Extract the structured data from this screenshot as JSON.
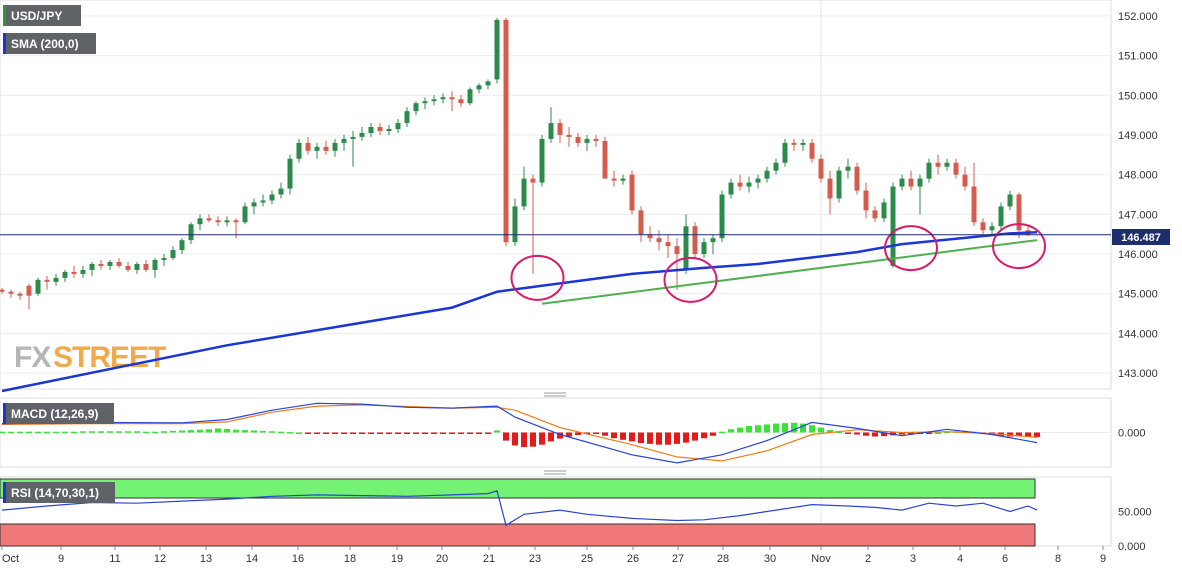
{
  "chart_data": [
    {
      "type": "candlestick",
      "symbol": "USD/JPY",
      "indicator_label": "SMA (200,0)",
      "current_price": "146.487",
      "ylim": [
        142.6,
        152.4
      ],
      "y_ticks": [
        "143.000",
        "144.000",
        "145.000",
        "146.000",
        "147.000",
        "148.000",
        "149.000",
        "150.000",
        "151.000",
        "152.000"
      ],
      "x_ticks": [
        "Oct",
        "9",
        "11",
        "12",
        "13",
        "14",
        "16",
        "18",
        "19",
        "20",
        "21",
        "23",
        "25",
        "26",
        "27",
        "28",
        "30",
        "Nov",
        "2",
        "3",
        "4",
        "6",
        "8",
        "9"
      ],
      "candles_ohlc": [
        [
          145.1,
          145.15,
          145.0,
          145.05
        ],
        [
          145.05,
          145.1,
          144.9,
          145.0
        ],
        [
          145.0,
          145.05,
          144.85,
          144.95
        ],
        [
          145.2,
          145.25,
          144.6,
          144.95
        ],
        [
          145.0,
          145.4,
          144.95,
          145.35
        ],
        [
          145.35,
          145.45,
          145.1,
          145.3
        ],
        [
          145.3,
          145.5,
          145.2,
          145.4
        ],
        [
          145.4,
          145.6,
          145.3,
          145.55
        ],
        [
          145.55,
          145.7,
          145.4,
          145.5
        ],
        [
          145.5,
          145.7,
          145.4,
          145.6
        ],
        [
          145.6,
          145.8,
          145.45,
          145.75
        ],
        [
          145.75,
          145.85,
          145.6,
          145.7
        ],
        [
          145.7,
          145.85,
          145.6,
          145.8
        ],
        [
          145.8,
          145.9,
          145.65,
          145.7
        ],
        [
          145.7,
          145.8,
          145.55,
          145.6
        ],
        [
          145.6,
          145.8,
          145.5,
          145.75
        ],
        [
          145.75,
          145.85,
          145.55,
          145.6
        ],
        [
          145.6,
          145.9,
          145.4,
          145.85
        ],
        [
          145.85,
          146.0,
          145.7,
          145.9
        ],
        [
          145.9,
          146.2,
          145.85,
          146.1
        ],
        [
          146.1,
          146.4,
          146.0,
          146.35
        ],
        [
          146.35,
          146.8,
          146.25,
          146.75
        ],
        [
          146.75,
          147.0,
          146.6,
          146.9
        ],
        [
          146.9,
          147.0,
          146.8,
          146.85
        ],
        [
          146.85,
          146.95,
          146.7,
          146.8
        ],
        [
          146.8,
          146.95,
          146.7,
          146.85
        ],
        [
          146.85,
          146.9,
          146.4,
          146.8
        ],
        [
          146.8,
          147.3,
          146.75,
          147.2
        ],
        [
          147.2,
          147.4,
          147.0,
          147.3
        ],
        [
          147.3,
          147.5,
          147.2,
          147.35
        ],
        [
          147.35,
          147.6,
          147.25,
          147.5
        ],
        [
          147.5,
          147.8,
          147.4,
          147.65
        ],
        [
          147.65,
          148.5,
          147.5,
          148.4
        ],
        [
          148.4,
          148.9,
          148.3,
          148.8
        ],
        [
          148.8,
          148.95,
          148.5,
          148.6
        ],
        [
          148.6,
          148.8,
          148.4,
          148.7
        ],
        [
          148.7,
          148.85,
          148.5,
          148.6
        ],
        [
          148.6,
          148.9,
          148.45,
          148.8
        ],
        [
          148.8,
          149.0,
          148.6,
          148.9
        ],
        [
          148.9,
          149.1,
          148.2,
          148.95
        ],
        [
          148.95,
          149.2,
          148.85,
          149.05
        ],
        [
          149.05,
          149.3,
          148.95,
          149.2
        ],
        [
          149.2,
          149.3,
          149.0,
          149.1
        ],
        [
          149.1,
          149.25,
          149.0,
          149.15
        ],
        [
          149.15,
          149.4,
          149.05,
          149.3
        ],
        [
          149.3,
          149.7,
          149.2,
          149.6
        ],
        [
          149.6,
          149.85,
          149.5,
          149.8
        ],
        [
          149.8,
          149.95,
          149.65,
          149.85
        ],
        [
          149.85,
          150.0,
          149.75,
          149.9
        ],
        [
          149.9,
          150.05,
          149.8,
          149.95
        ],
        [
          149.95,
          150.1,
          149.6,
          149.9
        ],
        [
          149.9,
          150.0,
          149.7,
          149.8
        ],
        [
          149.8,
          150.2,
          149.75,
          150.15
        ],
        [
          150.15,
          150.3,
          150.05,
          150.25
        ],
        [
          150.25,
          150.4,
          150.15,
          150.35
        ],
        [
          150.4,
          151.95,
          150.3,
          151.9
        ],
        [
          151.9,
          151.95,
          146.2,
          146.3
        ],
        [
          146.3,
          147.4,
          146.2,
          147.2
        ],
        [
          147.2,
          148.2,
          147.1,
          147.9
        ],
        [
          147.9,
          148.0,
          145.5,
          147.8
        ],
        [
          147.8,
          149.0,
          147.7,
          148.9
        ],
        [
          148.9,
          149.7,
          148.8,
          149.3
        ],
        [
          149.3,
          149.4,
          148.8,
          149.0
        ],
        [
          149.0,
          149.2,
          148.7,
          148.95
        ],
        [
          148.95,
          149.05,
          148.7,
          148.8
        ],
        [
          148.8,
          149.0,
          148.6,
          148.9
        ],
        [
          148.9,
          149.0,
          148.7,
          148.85
        ],
        [
          148.85,
          148.95,
          147.9,
          147.9
        ],
        [
          147.9,
          148.1,
          147.7,
          147.85
        ],
        [
          147.85,
          148.0,
          147.75,
          147.9
        ],
        [
          148.0,
          148.1,
          147.0,
          147.1
        ],
        [
          147.1,
          147.2,
          146.3,
          146.5
        ],
        [
          146.5,
          146.7,
          146.3,
          146.4
        ],
        [
          146.4,
          146.6,
          146.1,
          146.3
        ],
        [
          146.3,
          146.5,
          145.9,
          146.2
        ],
        [
          146.2,
          146.4,
          145.1,
          146.0
        ],
        [
          145.6,
          147.0,
          145.5,
          146.7
        ],
        [
          146.7,
          146.8,
          145.9,
          146.0
        ],
        [
          146.0,
          146.4,
          145.9,
          146.3
        ],
        [
          146.3,
          146.5,
          146.0,
          146.4
        ],
        [
          146.4,
          147.6,
          146.3,
          147.5
        ],
        [
          147.5,
          147.9,
          147.4,
          147.8
        ],
        [
          147.8,
          148.0,
          147.6,
          147.7
        ],
        [
          147.7,
          147.95,
          147.55,
          147.8
        ],
        [
          147.8,
          148.0,
          147.65,
          147.9
        ],
        [
          147.9,
          148.2,
          147.8,
          148.1
        ],
        [
          148.1,
          148.4,
          148.0,
          148.3
        ],
        [
          148.3,
          148.9,
          148.2,
          148.8
        ],
        [
          148.8,
          148.9,
          148.6,
          148.75
        ],
        [
          148.75,
          148.9,
          148.6,
          148.8
        ],
        [
          148.8,
          148.9,
          148.3,
          148.4
        ],
        [
          148.4,
          148.5,
          147.8,
          147.9
        ],
        [
          147.9,
          148.1,
          147.0,
          147.4
        ],
        [
          147.4,
          148.2,
          147.3,
          148.1
        ],
        [
          148.1,
          148.4,
          147.9,
          148.2
        ],
        [
          148.2,
          148.3,
          147.5,
          147.6
        ],
        [
          147.6,
          147.8,
          146.9,
          147.1
        ],
        [
          147.1,
          147.2,
          146.8,
          146.9
        ],
        [
          146.9,
          147.4,
          146.8,
          147.3
        ],
        [
          145.7,
          147.8,
          145.65,
          147.7
        ],
        [
          147.7,
          148.0,
          147.6,
          147.9
        ],
        [
          147.9,
          148.1,
          147.6,
          147.7
        ],
        [
          147.7,
          148.0,
          147.0,
          147.9
        ],
        [
          147.9,
          148.4,
          147.8,
          148.3
        ],
        [
          148.3,
          148.5,
          148.0,
          148.2
        ],
        [
          148.2,
          148.4,
          148.1,
          148.3
        ],
        [
          148.3,
          148.4,
          147.9,
          148.0
        ],
        [
          148.0,
          148.2,
          147.6,
          147.7
        ],
        [
          147.7,
          148.3,
          146.7,
          146.8
        ],
        [
          146.8,
          146.9,
          146.5,
          146.6
        ],
        [
          146.6,
          146.8,
          146.5,
          146.7
        ],
        [
          146.7,
          147.3,
          146.6,
          147.2
        ],
        [
          147.2,
          147.6,
          147.1,
          147.5
        ],
        [
          147.5,
          147.55,
          146.4,
          146.6
        ],
        [
          146.6,
          146.7,
          146.45,
          146.49
        ]
      ],
      "sma_200": [
        [
          0,
          142.55
        ],
        [
          25,
          143.7
        ],
        [
          50,
          144.65
        ],
        [
          55,
          145.05
        ],
        [
          60,
          145.2
        ],
        [
          70,
          145.5
        ],
        [
          78,
          145.65
        ],
        [
          84,
          145.75
        ],
        [
          95,
          146.05
        ],
        [
          100,
          146.25
        ],
        [
          112,
          146.52
        ],
        [
          115,
          146.55
        ]
      ],
      "trendline": [
        [
          60,
          144.75
        ],
        [
          115,
          146.35
        ]
      ],
      "circles_x": [
        59.5,
        76.5,
        101,
        113
      ],
      "circles_y": [
        145.4,
        145.35,
        146.15,
        146.2
      ]
    },
    {
      "type": "line",
      "indicator": "MACD (12,26,9)",
      "ylim": [
        -0.85,
        0.85
      ],
      "y_ticks": [
        "0.000"
      ],
      "macd_line": [
        [
          0,
          0.22
        ],
        [
          10,
          0.25
        ],
        [
          20,
          0.24
        ],
        [
          25,
          0.32
        ],
        [
          30,
          0.55
        ],
        [
          35,
          0.72
        ],
        [
          40,
          0.7
        ],
        [
          45,
          0.62
        ],
        [
          50,
          0.6
        ],
        [
          55,
          0.65
        ],
        [
          57,
          0.38
        ],
        [
          62,
          -0.05
        ],
        [
          70,
          -0.55
        ],
        [
          75,
          -0.75
        ],
        [
          80,
          -0.55
        ],
        [
          85,
          -0.2
        ],
        [
          90,
          0.25
        ],
        [
          95,
          0.1
        ],
        [
          100,
          -0.08
        ],
        [
          105,
          0.08
        ],
        [
          110,
          -0.05
        ],
        [
          115,
          -0.25
        ]
      ],
      "signal_line": [
        [
          0,
          0.2
        ],
        [
          10,
          0.22
        ],
        [
          20,
          0.22
        ],
        [
          25,
          0.26
        ],
        [
          30,
          0.5
        ],
        [
          35,
          0.65
        ],
        [
          40,
          0.68
        ],
        [
          45,
          0.64
        ],
        [
          50,
          0.6
        ],
        [
          55,
          0.62
        ],
        [
          57,
          0.55
        ],
        [
          62,
          0.12
        ],
        [
          70,
          -0.3
        ],
        [
          75,
          -0.6
        ],
        [
          80,
          -0.7
        ],
        [
          85,
          -0.45
        ],
        [
          90,
          -0.05
        ],
        [
          95,
          0.07
        ],
        [
          100,
          0.0
        ],
        [
          105,
          0.02
        ],
        [
          110,
          -0.03
        ],
        [
          115,
          -0.12
        ]
      ],
      "histogram": [
        0.02,
        0.02,
        0.02,
        0.02,
        0.02,
        0.02,
        0.02,
        0.02,
        0.02,
        0.03,
        0.03,
        0.03,
        0.03,
        0.03,
        0.03,
        0.03,
        0.02,
        0.02,
        0.03,
        0.04,
        0.05,
        0.06,
        0.07,
        0.08,
        0.1,
        0.09,
        0.07,
        0.06,
        0.05,
        0.04,
        0.03,
        0.02,
        0.01,
        0.0,
        -0.01,
        -0.01,
        -0.01,
        -0.01,
        -0.01,
        -0.01,
        -0.01,
        -0.01,
        -0.01,
        -0.01,
        -0.01,
        -0.01,
        -0.01,
        -0.01,
        -0.01,
        -0.01,
        -0.01,
        -0.01,
        -0.01,
        -0.01,
        -0.01,
        0.05,
        -0.2,
        -0.32,
        -0.36,
        -0.35,
        -0.3,
        -0.22,
        -0.15,
        -0.1,
        -0.06,
        -0.03,
        -0.02,
        -0.08,
        -0.14,
        -0.18,
        -0.22,
        -0.26,
        -0.28,
        -0.3,
        -0.3,
        -0.28,
        -0.25,
        -0.2,
        -0.14,
        -0.08,
        0.02,
        0.08,
        0.12,
        0.16,
        0.18,
        0.2,
        0.22,
        0.23,
        0.24,
        0.22,
        0.18,
        0.12,
        0.06,
        0.02,
        -0.02,
        -0.05,
        -0.08,
        -0.1,
        -0.09,
        -0.07,
        -0.05,
        -0.03,
        -0.02,
        -0.01,
        0.0,
        0.02,
        0.03,
        0.04,
        0.02,
        -0.02,
        -0.06,
        -0.09,
        -0.1,
        -0.09,
        -0.1,
        -0.11
      ]
    },
    {
      "type": "line",
      "indicator": "RSI (14,70,30,1)",
      "ylim": [
        0,
        100
      ],
      "y_ticks": [
        "50.000",
        "0.000"
      ],
      "overbought": 70,
      "oversold": 30,
      "rsi_line": [
        [
          0,
          52
        ],
        [
          5,
          58
        ],
        [
          10,
          63
        ],
        [
          15,
          62
        ],
        [
          20,
          65
        ],
        [
          25,
          68
        ],
        [
          30,
          72
        ],
        [
          35,
          74
        ],
        [
          40,
          73
        ],
        [
          45,
          72
        ],
        [
          50,
          74
        ],
        [
          54,
          76
        ],
        [
          55,
          80
        ],
        [
          56,
          30
        ],
        [
          58,
          46
        ],
        [
          62,
          52
        ],
        [
          65,
          46
        ],
        [
          70,
          40
        ],
        [
          75,
          37
        ],
        [
          78,
          38
        ],
        [
          82,
          44
        ],
        [
          86,
          52
        ],
        [
          90,
          60
        ],
        [
          94,
          58
        ],
        [
          97,
          56
        ],
        [
          100,
          52
        ],
        [
          103,
          62
        ],
        [
          106,
          58
        ],
        [
          109,
          62
        ],
        [
          112,
          50
        ],
        [
          114,
          58
        ],
        [
          115,
          52
        ]
      ]
    }
  ]
}
